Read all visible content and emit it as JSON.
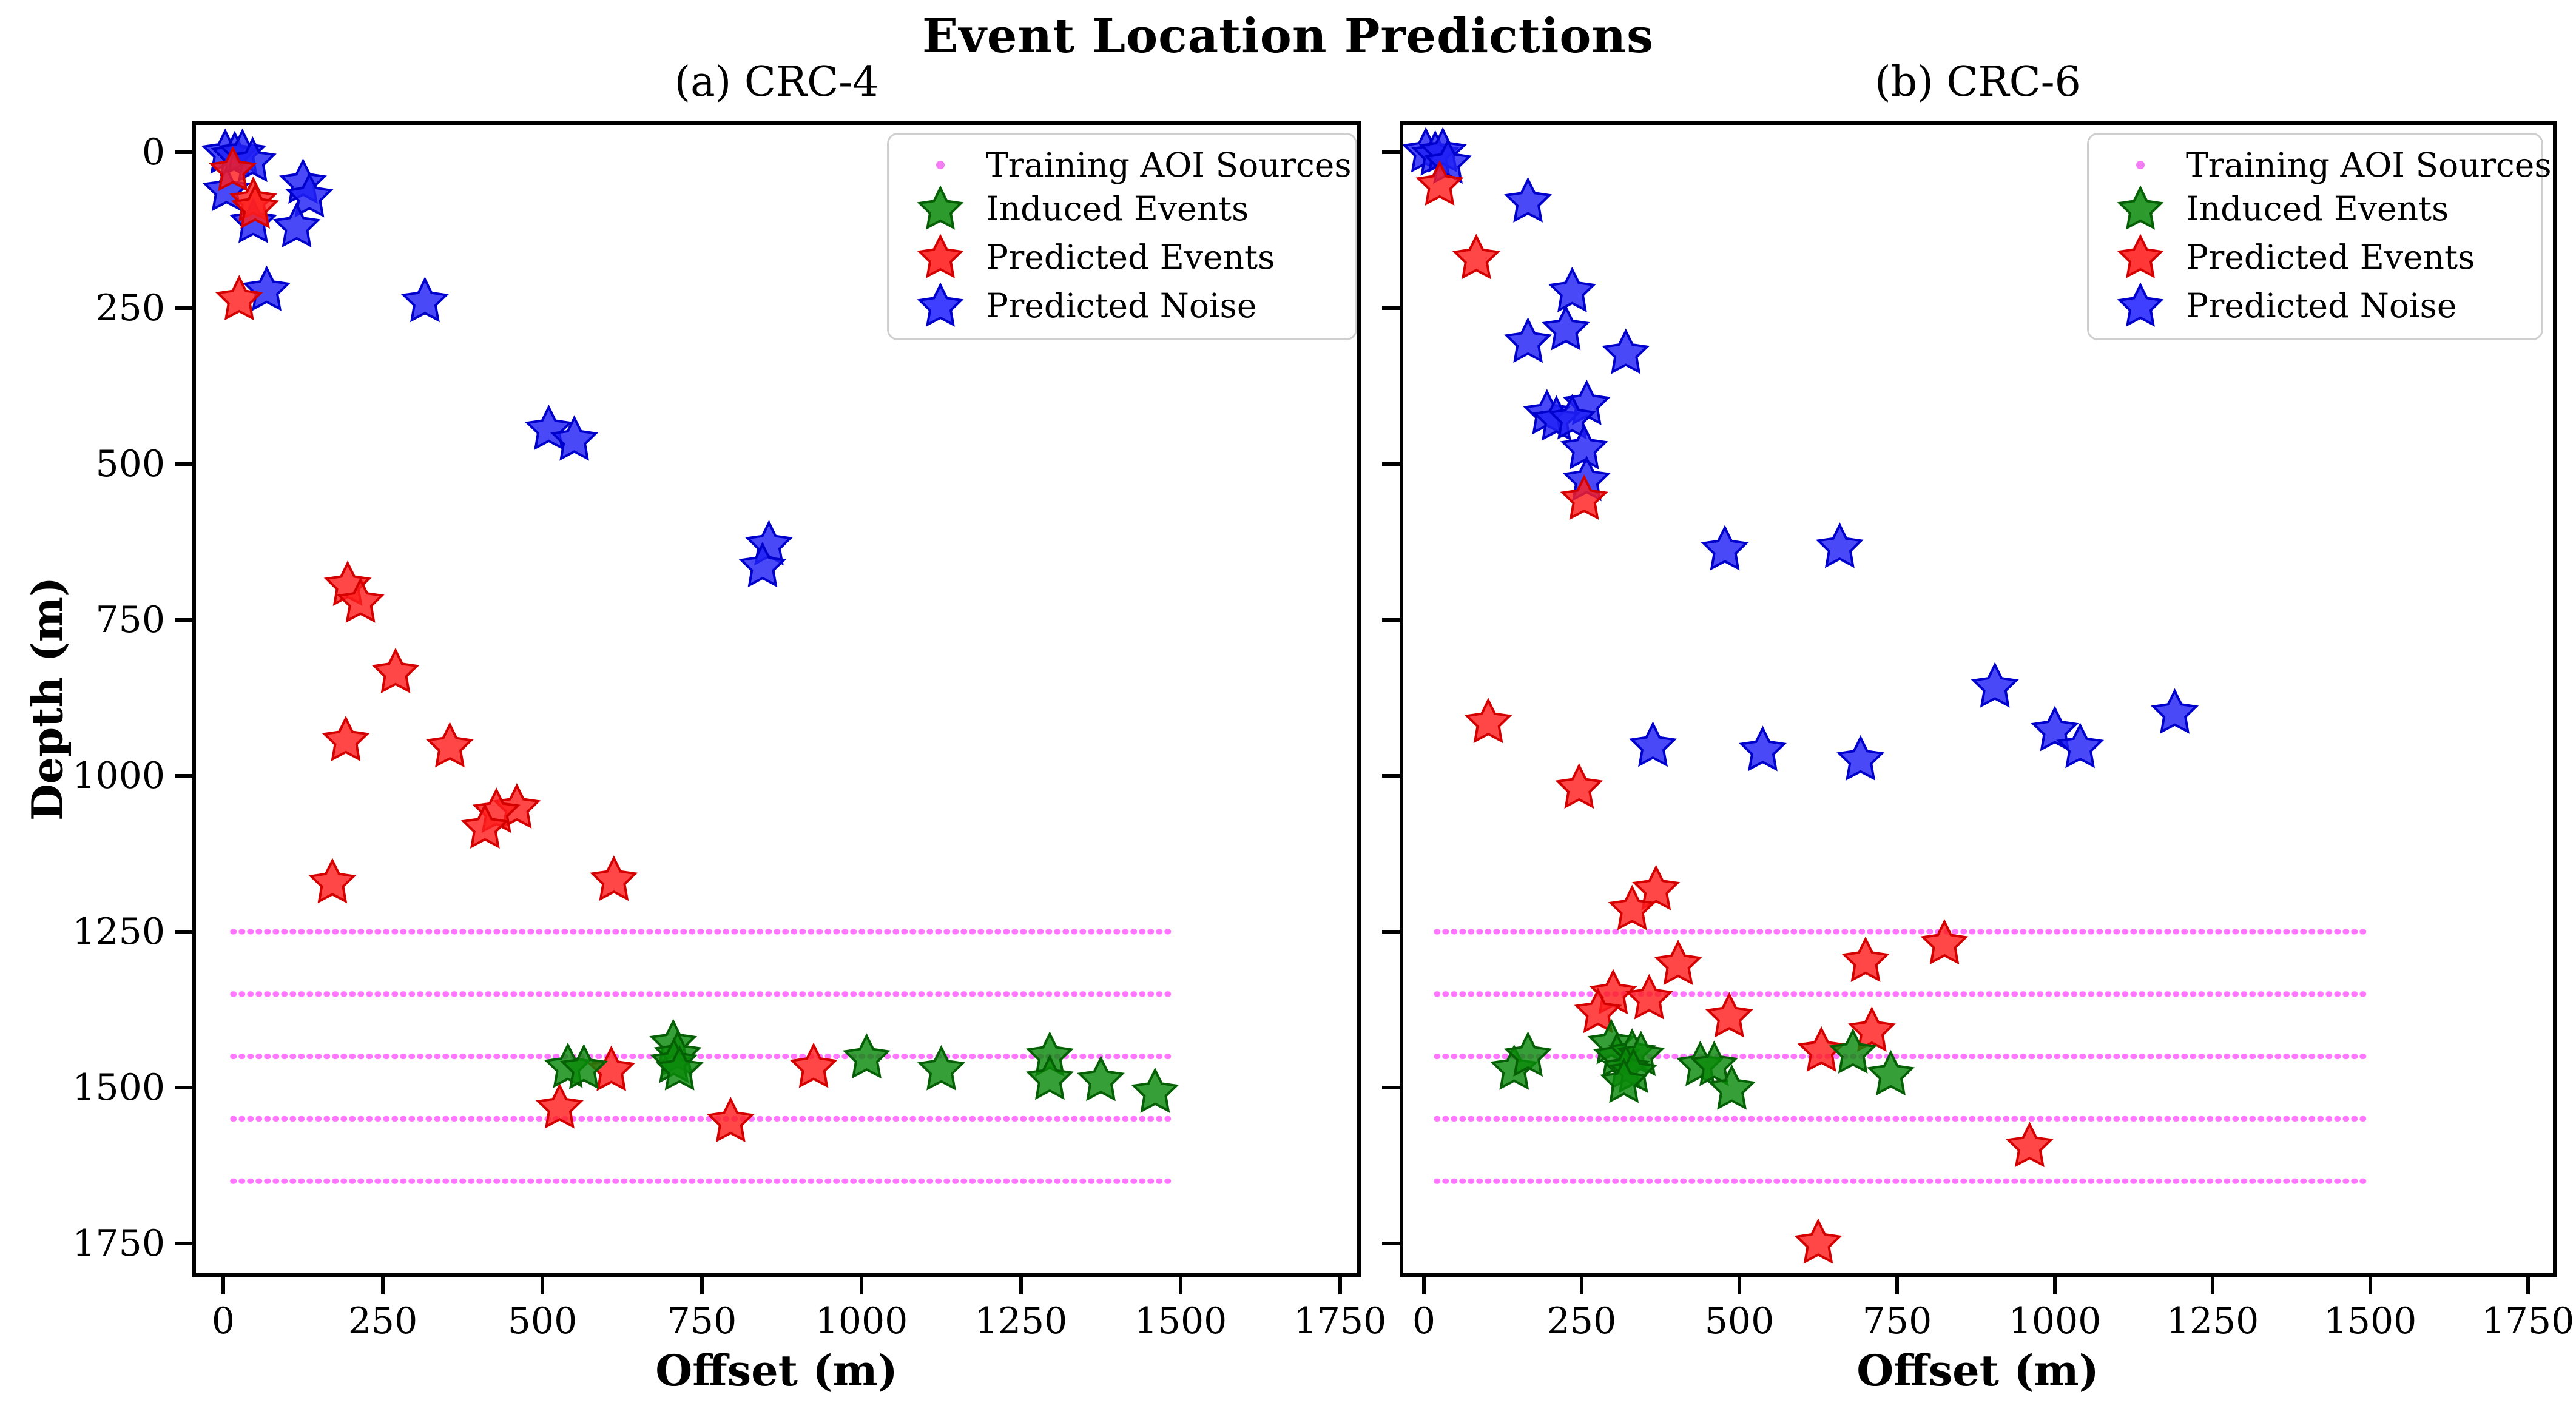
{
  "title": "Event Location Predictions",
  "axes": {
    "xlabel": "Offset (m)",
    "ylabel": "Depth (m)",
    "x_ticks": [
      "0",
      "250",
      "500",
      "750",
      "1000",
      "1250",
      "1500",
      "1750"
    ],
    "y_ticks": [
      "0",
      "250",
      "500",
      "750",
      "1000",
      "1250",
      "1500",
      "1750"
    ]
  },
  "legend": {
    "entries": [
      {
        "label": "Training AOI Sources",
        "marker": "dot",
        "color": "#f47df4"
      },
      {
        "label": "Induced Events",
        "marker": "star",
        "color": "#078807"
      },
      {
        "label": "Predicted Events",
        "marker": "star",
        "color": "#ff1414"
      },
      {
        "label": "Predicted Noise",
        "marker": "star",
        "color": "#1d1dff"
      }
    ]
  },
  "chart_data": [
    {
      "type": "scatter",
      "title": "(a) CRC-4",
      "xlabel": "Offset (m)",
      "ylabel": "Depth (m)",
      "xlim": [
        -50,
        1790
      ],
      "ylim": [
        1800,
        -45
      ],
      "grid": false,
      "legend_position": "upper right",
      "training_aoi_lines": {
        "depths": [
          1250,
          1350,
          1450,
          1550,
          1650
        ],
        "offset_range": [
          15,
          1485
        ],
        "color": "#ff00ff",
        "style": "dotted"
      },
      "series": [
        {
          "name": "Predicted Noise",
          "color": "#0000ff",
          "marker": "star",
          "points": [
            [
              3,
              2
            ],
            [
              18,
              6
            ],
            [
              30,
              2
            ],
            [
              46,
              15
            ],
            [
              5,
              62
            ],
            [
              125,
              50
            ],
            [
              135,
              72
            ],
            [
              47,
              113
            ],
            [
              115,
              120
            ],
            [
              68,
              222
            ],
            [
              316,
              240
            ],
            [
              510,
              445
            ],
            [
              550,
              462
            ],
            [
              855,
              630
            ],
            [
              845,
              665
            ]
          ]
        },
        {
          "name": "Predicted Events",
          "color": "#ff0000",
          "marker": "star",
          "points": [
            [
              15,
              30
            ],
            [
              47,
              79
            ],
            [
              50,
              90
            ],
            [
              25,
              237
            ],
            [
              195,
              695
            ],
            [
              215,
              722
            ],
            [
              270,
              835
            ],
            [
              192,
              944
            ],
            [
              355,
              954
            ],
            [
              460,
              1052
            ],
            [
              428,
              1059
            ],
            [
              410,
              1084
            ],
            [
              171,
              1172
            ],
            [
              612,
              1168
            ],
            [
              608,
              1473
            ],
            [
              925,
              1468
            ],
            [
              527,
              1533
            ],
            [
              795,
              1555
            ]
          ]
        },
        {
          "name": "Induced Events",
          "color": "#008000",
          "marker": "star",
          "points": [
            [
              540,
              1468
            ],
            [
              565,
              1470
            ],
            [
              705,
              1430
            ],
            [
              712,
              1448
            ],
            [
              706,
              1460
            ],
            [
              715,
              1472
            ],
            [
              1008,
              1453
            ],
            [
              1125,
              1472
            ],
            [
              1295,
              1450
            ],
            [
              1295,
              1487
            ],
            [
              1375,
              1489
            ],
            [
              1460,
              1508
            ]
          ]
        }
      ]
    },
    {
      "type": "scatter",
      "title": "(b) CRC-6",
      "xlabel": "Offset (m)",
      "ylabel": "",
      "xlim": [
        -50,
        1790
      ],
      "ylim": [
        1800,
        -45
      ],
      "grid": false,
      "legend_position": "upper right",
      "training_aoi_lines": {
        "depths": [
          1250,
          1350,
          1450,
          1550,
          1650
        ],
        "offset_range": [
          20,
          1490
        ],
        "color": "#ff00ff",
        "style": "dotted"
      },
      "series": [
        {
          "name": "Predicted Noise",
          "color": "#0000ff",
          "marker": "star",
          "points": [
            [
              3,
              0
            ],
            [
              18,
              5
            ],
            [
              30,
              0
            ],
            [
              38,
              18
            ],
            [
              165,
              80
            ],
            [
              235,
              224
            ],
            [
              225,
              285
            ],
            [
              165,
              305
            ],
            [
              320,
              323
            ],
            [
              258,
              405
            ],
            [
              195,
              420
            ],
            [
              210,
              430
            ],
            [
              235,
              428
            ],
            [
              254,
              476
            ],
            [
              258,
              527
            ],
            [
              477,
              638
            ],
            [
              659,
              634
            ],
            [
              363,
              953
            ],
            [
              905,
              858
            ],
            [
              1190,
              900
            ],
            [
              1000,
              928
            ],
            [
              1040,
              955
            ],
            [
              537,
              960
            ],
            [
              692,
              975
            ]
          ]
        },
        {
          "name": "Predicted Events",
          "color": "#ff0000",
          "marker": "star",
          "points": [
            [
              25,
              53
            ],
            [
              83,
              171
            ],
            [
              254,
              557
            ],
            [
              102,
              915
            ],
            [
              246,
              1020
            ],
            [
              368,
              1183
            ],
            [
              330,
              1215
            ],
            [
              825,
              1270
            ],
            [
              700,
              1298
            ],
            [
              403,
              1303
            ],
            [
              300,
              1350
            ],
            [
              357,
              1358
            ],
            [
              276,
              1380
            ],
            [
              484,
              1387
            ],
            [
              710,
              1410
            ],
            [
              630,
              1442
            ],
            [
              960,
              1595
            ],
            [
              625,
              1750
            ]
          ]
        },
        {
          "name": "Induced Events",
          "color": "#008000",
          "marker": "star",
          "points": [
            [
              143,
              1471
            ],
            [
              165,
              1450
            ],
            [
              297,
              1430
            ],
            [
              306,
              1451
            ],
            [
              330,
              1445
            ],
            [
              344,
              1449
            ],
            [
              320,
              1470
            ],
            [
              332,
              1476
            ],
            [
              317,
              1492
            ],
            [
              438,
              1465
            ],
            [
              460,
              1465
            ],
            [
              488,
              1503
            ],
            [
              680,
              1445
            ],
            [
              740,
              1480
            ]
          ]
        }
      ]
    }
  ]
}
